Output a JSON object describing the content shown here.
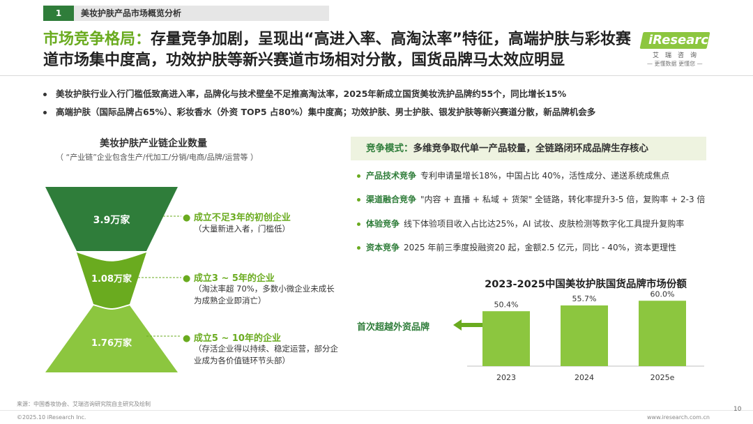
{
  "header": {
    "section_number": "1",
    "section_title": "美妆护肤产品市场概览分析",
    "headline_lead": "市场竞争格局：",
    "headline_rest": "存量竞争加剧，呈现出“高进入率、高淘汰率”特征，高端护肤与彩妆赛道市场集中度高，功效护肤等新兴赛道市场相对分散，国货品牌马太效应明显"
  },
  "logo": {
    "brand": "iResearch",
    "cn_name": "艾瑞咨询",
    "slogan": "— 更懂数据 更懂您 —"
  },
  "bullets": [
    "美妆护肤行业入行门槛低致高进入率，品牌化与技术壁垒不足推高淘汰率，2025年新成立国货美妆洗护品牌约55个，同比增长15%",
    "高端护肤（国际品牌占65%）、彩妆香水（外资 TOP5 占80%）集中度高；功效护肤、男士护肤、银发护肤等新兴赛道分散，新品牌机会多"
  ],
  "funnel": {
    "title": "美妆护肤产业链企业数量",
    "subtitle": "（ “产业链”企业包含生产/代加工/分销/电商/品牌/运营等 ）",
    "tiers": [
      {
        "value_label": "3.9万家",
        "value": 3.9,
        "stage": "成立不足3年的初创企业",
        "desc": "（大量新进入者，门槛低）",
        "color": "#2f7d3a"
      },
      {
        "value_label": "1.08万家",
        "value": 1.08,
        "stage": "成立3 ~ 5年的企业",
        "desc": "（淘汰率超 70%，多数小微企业未成长为成熟企业即消亡）",
        "color": "#6aab1f"
      },
      {
        "value_label": "1.76万家",
        "value": 1.76,
        "stage": "成立5 ~ 10年的企业",
        "desc": "（存活企业得以持续、稳定运营，部分企业成为各价值链环节头部）",
        "color": "#8cc63f"
      }
    ]
  },
  "competition": {
    "label": "竞争模式：",
    "summary": "多维竞争取代单一产品较量，全链路闭环成品牌生存核心",
    "items": [
      {
        "key": "产品技术竞争",
        "text": "专利申请量增长18%，中国占比 40%，活性成分、递送系统成焦点"
      },
      {
        "key": "渠道融合竞争",
        "text": "\"内容 + 直播 + 私域 + 货架\" 全链路，转化率提升3-5 倍，复购率 + 2-3 倍"
      },
      {
        "key": "体验竞争",
        "text": "线下体验项目收入占比达25%，AI 试妆、皮肤检测等数字化工具提升复购率"
      },
      {
        "key": "资本竞争",
        "text": "2025 年前三季度投融资20 起，金额2.5 亿元，同比 - 40%，资本更理性"
      }
    ]
  },
  "callout": "首次超越外资品牌",
  "chart_data": {
    "type": "bar",
    "title": "2023-2025中国美妆护肤国货品牌市场份额",
    "categories": [
      "2023",
      "2024",
      "2025e"
    ],
    "values": [
      50.4,
      55.7,
      60.0
    ],
    "value_labels": [
      "50.4%",
      "55.7%",
      "60.0%"
    ],
    "xlabel": "",
    "ylabel": "",
    "ylim": [
      0,
      64
    ],
    "grid": false,
    "legend": "none",
    "bar_color": "#8cc63f"
  },
  "footer": {
    "source": "来源：中国香妆协会、艾瑞咨询研究院自主研究及绘制",
    "copyright": "©2025.10 iResearch Inc.",
    "site": "www.iresearch.com.cn",
    "page": "10"
  }
}
